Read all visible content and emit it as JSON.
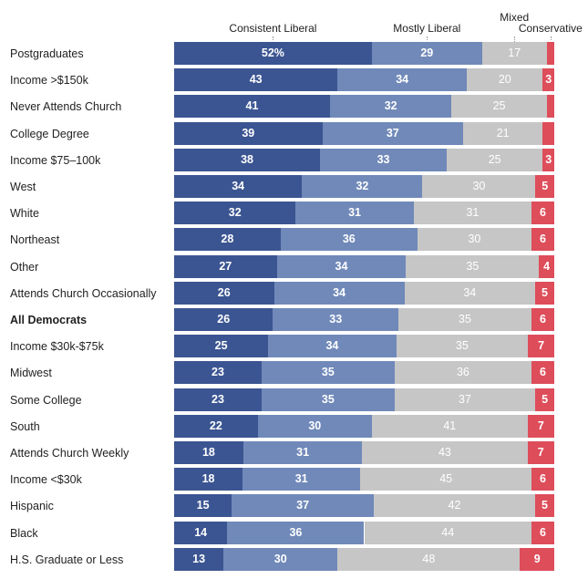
{
  "chart_data": {
    "type": "bar",
    "orientation": "horizontal",
    "stacked": true,
    "xlim": [
      0,
      100
    ],
    "grid": false,
    "legend_placement": "top",
    "emphasized_category": "All Democrats",
    "categories": [
      "Postgraduates",
      "Income >$150k",
      "Never Attends Church",
      "College Degree",
      "Income $75–100k",
      "West",
      "White",
      "Northeast",
      "Other",
      "Attends Church Occasionally",
      "All Democrats",
      "Income $30k-$75k",
      "Midwest",
      "Some College",
      "South",
      "Attends Church Weekly",
      "Income <$30k",
      "Hispanic",
      "Black",
      "H.S. Graduate or Less"
    ],
    "series": [
      {
        "name": "Consistent Liberal",
        "color": "#3b5592",
        "values": [
          52,
          43,
          41,
          39,
          38,
          34,
          32,
          28,
          27,
          26,
          26,
          25,
          23,
          23,
          22,
          18,
          18,
          15,
          14,
          13
        ],
        "labels": [
          "52%",
          "43",
          "41",
          "39",
          "38",
          "34",
          "32",
          "28",
          "27",
          "26",
          "26",
          "25",
          "23",
          "23",
          "22",
          "18",
          "18",
          "15",
          "14",
          "13"
        ]
      },
      {
        "name": "Mostly Liberal",
        "color": "#7089b9",
        "values": [
          29,
          34,
          32,
          37,
          33,
          32,
          31,
          36,
          34,
          34,
          33,
          34,
          35,
          35,
          30,
          31,
          31,
          37,
          36,
          30
        ],
        "labels": [
          "29",
          "34",
          "32",
          "37",
          "33",
          "32",
          "31",
          "36",
          "34",
          "34",
          "33",
          "34",
          "35",
          "35",
          "30",
          "31",
          "31",
          "37",
          "36",
          "30"
        ]
      },
      {
        "name": "Mixed",
        "color": "#c6c6c6",
        "values": [
          17,
          20,
          25,
          21,
          25,
          30,
          31,
          30,
          35,
          34,
          35,
          35,
          36,
          37,
          41,
          43,
          45,
          42,
          44,
          48
        ],
        "labels": [
          "17",
          "20",
          "25",
          "21",
          "25",
          "30",
          "31",
          "30",
          "35",
          "34",
          "35",
          "35",
          "36",
          "37",
          "41",
          "43",
          "45",
          "42",
          "44",
          "48"
        ]
      },
      {
        "name": "Conservative",
        "color": "#de4d5a",
        "values": [
          2,
          3,
          2,
          3,
          3,
          5,
          6,
          6,
          4,
          5,
          6,
          7,
          6,
          5,
          7,
          7,
          6,
          5,
          6,
          9
        ],
        "labels": [
          "",
          "3",
          "",
          "",
          "3",
          "5",
          "6",
          "6",
          "4",
          "5",
          "6",
          "7",
          "6",
          "5",
          "7",
          "7",
          "6",
          "5",
          "6",
          "9"
        ]
      }
    ]
  }
}
